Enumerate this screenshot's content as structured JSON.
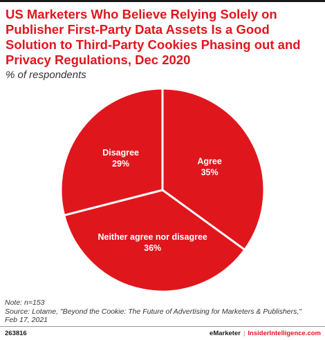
{
  "title": "US Marketers Who Believe Relying Solely on Publisher First-Party Data Assets Is a Good Solution to Third-Party Cookies Phasing out and Privacy Regulations, Dec 2020",
  "subtitle": "% of respondents",
  "chart_data": {
    "type": "pie",
    "title": "US Marketers Who Believe Relying Solely on Publisher First-Party Data Assets Is a Good Solution to Third-Party Cookies Phasing out and Privacy Regulations, Dec 2020",
    "subtitle": "% of respondents",
    "slices": [
      {
        "label": "Agree",
        "value": 35,
        "display": "35%"
      },
      {
        "label": "Neither agree nor disagree",
        "value": 36,
        "display": "36%"
      },
      {
        "label": "Disagree",
        "value": 29,
        "display": "29%"
      }
    ],
    "start": "12 o'clock",
    "direction": "clockwise",
    "colors": {
      "slice": "#e0161d",
      "divider": "#ffffff",
      "label": "#ffffff"
    }
  },
  "note": "Note: n=153",
  "source_line1": "Source: Lotame, \"Beyond the Cookie: The Future of Advertising for Marketers & Publishers,\"",
  "source_line2": "Feb 17, 2021",
  "footer": {
    "chart_id": "263816",
    "brand": "eMarketer",
    "separator": "|",
    "brand_secondary": "InsiderIntelligence.com"
  },
  "colors": {
    "accent": "#e0161d",
    "text": "#333333"
  }
}
